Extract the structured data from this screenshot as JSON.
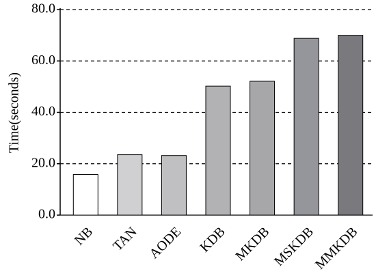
{
  "chart_data": {
    "type": "bar",
    "y_label": "Time(seconds)",
    "categories": [
      "NB",
      "TAN",
      "AODE",
      "KDB",
      "MKDB",
      "MSKDB",
      "MMKDB"
    ],
    "values": [
      15.8,
      23.5,
      23.2,
      50.2,
      52.1,
      68.8,
      70.0
    ],
    "colors": [
      "#ffffff",
      "#d0d0d2",
      "#c0c0c2",
      "#b2b2b5",
      "#a7a7aa",
      "#95969c",
      "#7a7a7e"
    ],
    "ylim": [
      0,
      80
    ],
    "yticks": [
      {
        "value": 0,
        "label": "0.0"
      },
      {
        "value": 20,
        "label": "20.0"
      },
      {
        "value": 40,
        "label": "40.0"
      },
      {
        "value": 60,
        "label": "60.0"
      },
      {
        "value": 80,
        "label": "80.0"
      }
    ],
    "grid": true
  }
}
